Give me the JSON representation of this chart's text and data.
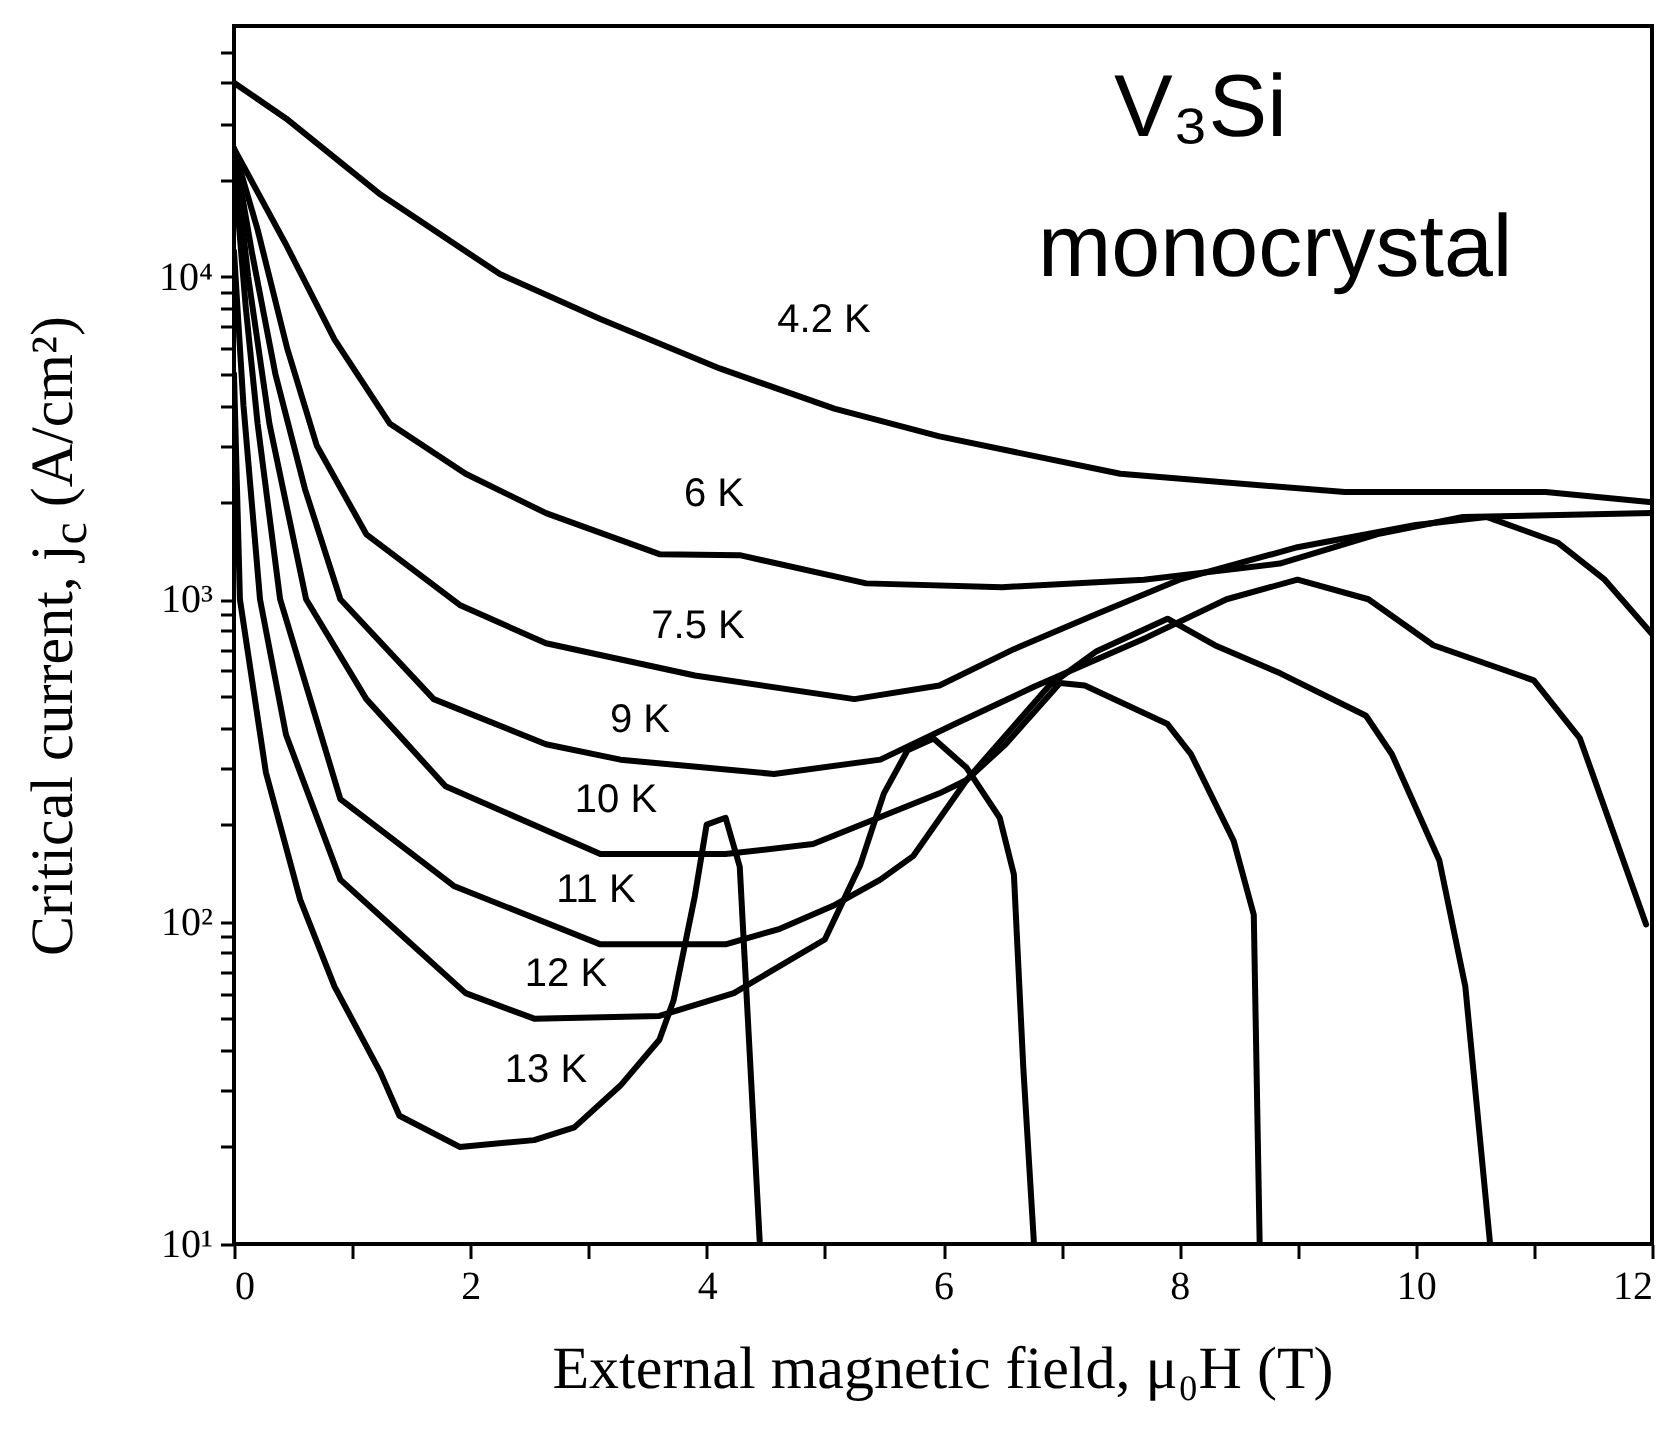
{
  "chart_data": {
    "type": "line",
    "xlabel": "External magnetic field, μ₀H (T)",
    "ylabel": "Critical current, j$_{c}$ (A/cm²)",
    "log": "y",
    "xlim": [
      0,
      12
    ],
    "ylim": [
      10,
      60000
    ],
    "xticks": [
      0,
      {
        "value": 1,
        "label": null
      },
      2,
      {
        "value": 3,
        "label": null
      },
      4,
      {
        "value": 5,
        "label": null
      },
      6,
      {
        "value": 7,
        "label": null
      },
      8,
      {
        "value": 9,
        "label": null
      },
      10,
      {
        "value": 11,
        "label": null
      },
      12
    ],
    "yticks": [
      {
        "value": 10,
        "label": "10¹"
      },
      {
        "value": 20,
        "label": null
      },
      {
        "value": 30,
        "label": null
      },
      {
        "value": 40,
        "label": null
      },
      {
        "value": 50,
        "label": null
      },
      {
        "value": 60,
        "label": null
      },
      {
        "value": 70,
        "label": null
      },
      {
        "value": 80,
        "label": null
      },
      {
        "value": 90,
        "label": null
      },
      {
        "value": 100,
        "label": "10²"
      },
      {
        "value": 200,
        "label": null
      },
      {
        "value": 300,
        "label": null
      },
      {
        "value": 400,
        "label": null
      },
      {
        "value": 500,
        "label": null
      },
      {
        "value": 600,
        "label": null
      },
      {
        "value": 700,
        "label": null
      },
      {
        "value": 800,
        "label": null
      },
      {
        "value": 900,
        "label": null
      },
      {
        "value": 1000,
        "label": "10³"
      },
      {
        "value": 2000,
        "label": null
      },
      {
        "value": 3000,
        "label": null
      },
      {
        "value": 4000,
        "label": null
      },
      {
        "value": 5000,
        "label": null
      },
      {
        "value": 6000,
        "label": null
      },
      {
        "value": 7000,
        "label": null
      },
      {
        "value": 8000,
        "label": null
      },
      {
        "value": 9000,
        "label": null
      },
      {
        "value": 10000,
        "label": "10⁴"
      },
      {
        "value": 20000,
        "label": null
      },
      {
        "value": 30000,
        "label": null
      },
      {
        "value": 40000,
        "label": null
      },
      {
        "value": 50000,
        "label": null
      }
    ],
    "grid": false,
    "series": [
      {
        "name": "4.2 K",
        "color": "#000000",
        "x": [
          0,
          0.44,
          1.24,
          2.25,
          3.1,
          4.11,
          5.08,
          5.97,
          7.5,
          9.4,
          11.1,
          12
        ],
        "values": [
          40000,
          31000,
          18000,
          10200,
          7400,
          5200,
          3900,
          3200,
          2450,
          2150,
          2150,
          2000
        ]
      },
      {
        "name": "6 K",
        "color": "#000000",
        "x": [
          0,
          0.44,
          0.85,
          1.32,
          1.96,
          2.64,
          3.6,
          4.28,
          5.35,
          6.5,
          7.7,
          8.85,
          9.7,
          10.4,
          12
        ],
        "values": [
          25000,
          12600,
          6400,
          3500,
          2450,
          1850,
          1380,
          1370,
          1120,
          1090,
          1150,
          1290,
          1600,
          1800,
          1850
        ]
      },
      {
        "name": "7.5 K",
        "color": "#000000",
        "x": [
          0,
          0.2,
          0.45,
          0.7,
          1.12,
          1.91,
          2.64,
          3.9,
          5.25,
          5.97,
          6.6,
          7.3,
          8,
          9,
          10,
          10.6,
          11.2,
          11.6,
          12
        ],
        "values": [
          25000,
          14000,
          6000,
          3000,
          1590,
          960,
          730,
          580,
          490,
          540,
          700,
          900,
          1150,
          1450,
          1700,
          1800,
          1500,
          1150,
          780
        ]
      },
      {
        "name": "9 K",
        "color": "#000000",
        "x": [
          0,
          0.15,
          0.35,
          0.6,
          0.9,
          1.69,
          2.64,
          3.27,
          4.57,
          5.47,
          6.1,
          6.77,
          7.72,
          8.4,
          9,
          9.6,
          10.15,
          11,
          11.39,
          11.95
        ],
        "values": [
          25000,
          12000,
          5000,
          2200,
          1000,
          490,
          355,
          318,
          287,
          318,
          410,
          535,
          760,
          1000,
          1150,
          1000,
          720,
          560,
          370,
          98
        ]
      },
      {
        "name": "10 K",
        "color": "#000000",
        "x": [
          0,
          0.12,
          0.3,
          0.61,
          1.12,
          1.79,
          3.1,
          4.16,
          4.9,
          5.97,
          6.2,
          6.9,
          7.3,
          7.9,
          8.3,
          8.85,
          9.58,
          9.8,
          10.2,
          10.42,
          10.63
        ],
        "values": [
          25000,
          10000,
          3500,
          1000,
          490,
          263,
          162,
          162,
          174,
          250,
          275,
          540,
          690,
          870,
          720,
          590,
          435,
          330,
          155,
          63,
          10
        ]
      },
      {
        "name": "11 K",
        "color": "#000000",
        "x": [
          0,
          0.1,
          0.2,
          0.39,
          0.9,
          1.86,
          3.1,
          4.16,
          4.62,
          5.07,
          5.47,
          5.75,
          6.2,
          6.53,
          6.99,
          7.2,
          7.9,
          8.1,
          8.46,
          8.63,
          8.68
        ],
        "values": [
          22000,
          8000,
          3500,
          1000,
          240,
          129,
          85,
          85,
          95,
          112,
          135,
          160,
          275,
          355,
          550,
          540,
          410,
          330,
          178,
          105,
          10
        ]
      },
      {
        "name": "12 K",
        "color": "#000000",
        "x": [
          0,
          0.08,
          0.22,
          0.44,
          0.9,
          1.4,
          1.96,
          2.54,
          3.6,
          4.23,
          5,
          5.3,
          5.5,
          5.7,
          5.92,
          6.2,
          6.48,
          6.6,
          6.68,
          6.77
        ],
        "values": [
          12000,
          4000,
          1000,
          380,
          135,
          92,
          60,
          50,
          51,
          60,
          88,
          150,
          250,
          340,
          370,
          300,
          210,
          140,
          35,
          10
        ]
      },
      {
        "name": "13 K",
        "color": "#000000",
        "x": [
          0,
          0.05,
          0.27,
          0.56,
          0.85,
          1.24,
          1.4,
          1.91,
          2.54,
          2.88,
          3.27,
          3.6,
          3.72,
          3.9,
          4,
          4.16,
          4.28,
          4.45
        ],
        "values": [
          5000,
          1000,
          290,
          117,
          63,
          34,
          25,
          20,
          21,
          23,
          31,
          43,
          57,
          120,
          200,
          210,
          148,
          10
        ]
      }
    ],
    "annotations": [
      "V₃Si",
      "monocrystal"
    ]
  }
}
